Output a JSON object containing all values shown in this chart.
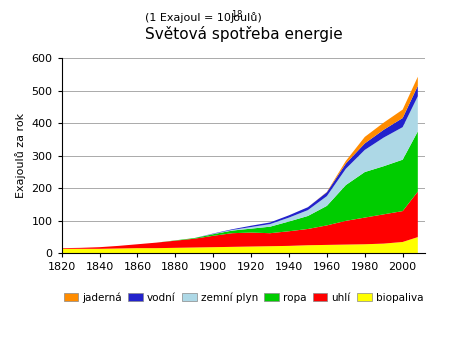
{
  "title": "Světová spotřeba energie",
  "ylabel": "Exajoulů za rok",
  "xlim": [
    1820,
    2012
  ],
  "ylim": [
    0,
    600
  ],
  "yticks": [
    0,
    100,
    200,
    300,
    400,
    500,
    600
  ],
  "xticks": [
    1820,
    1840,
    1860,
    1880,
    1900,
    1920,
    1940,
    1960,
    1980,
    2000
  ],
  "years": [
    1820,
    1830,
    1840,
    1850,
    1860,
    1870,
    1880,
    1890,
    1900,
    1910,
    1920,
    1930,
    1940,
    1950,
    1960,
    1970,
    1980,
    1990,
    2000,
    2008
  ],
  "biopaliva": [
    14,
    14,
    14,
    15,
    16,
    16,
    17,
    18,
    19,
    20,
    21,
    22,
    23,
    25,
    26,
    27,
    28,
    30,
    35,
    50
  ],
  "uhli": [
    2,
    3,
    5,
    8,
    12,
    17,
    22,
    27,
    35,
    42,
    43,
    40,
    45,
    50,
    60,
    73,
    82,
    90,
    95,
    140
  ],
  "ropa": [
    0,
    0,
    0,
    0,
    0,
    0,
    1,
    2,
    5,
    8,
    12,
    20,
    30,
    40,
    60,
    110,
    140,
    148,
    158,
    185
  ],
  "zemni_plyn": [
    0,
    0,
    0,
    0,
    0,
    0,
    0,
    0,
    1,
    2,
    5,
    8,
    12,
    18,
    30,
    50,
    68,
    88,
    100,
    108
  ],
  "vodni": [
    0,
    0,
    0,
    0,
    0,
    0,
    0,
    0,
    1,
    2,
    4,
    5,
    7,
    9,
    12,
    16,
    20,
    24,
    28,
    32
  ],
  "jaderna": [
    0,
    0,
    0,
    0,
    0,
    0,
    0,
    0,
    0,
    0,
    0,
    0,
    0,
    0,
    1,
    8,
    20,
    22,
    26,
    28
  ],
  "colors": {
    "biopaliva": "#ffff00",
    "uhli": "#ff0000",
    "ropa": "#00cc00",
    "zemni_plyn": "#add8e6",
    "vodni": "#2222cc",
    "jaderna": "#ff8c00"
  },
  "legend_labels": [
    "jaderná",
    "vodní",
    "zemní plyn",
    "ropa",
    "uhlí",
    "biopaliva"
  ],
  "legend_colors": [
    "#ff8c00",
    "#2222cc",
    "#add8e6",
    "#00cc00",
    "#ff0000",
    "#ffff00"
  ],
  "background_color": "#ffffff",
  "grid_color": "#aaaaaa"
}
